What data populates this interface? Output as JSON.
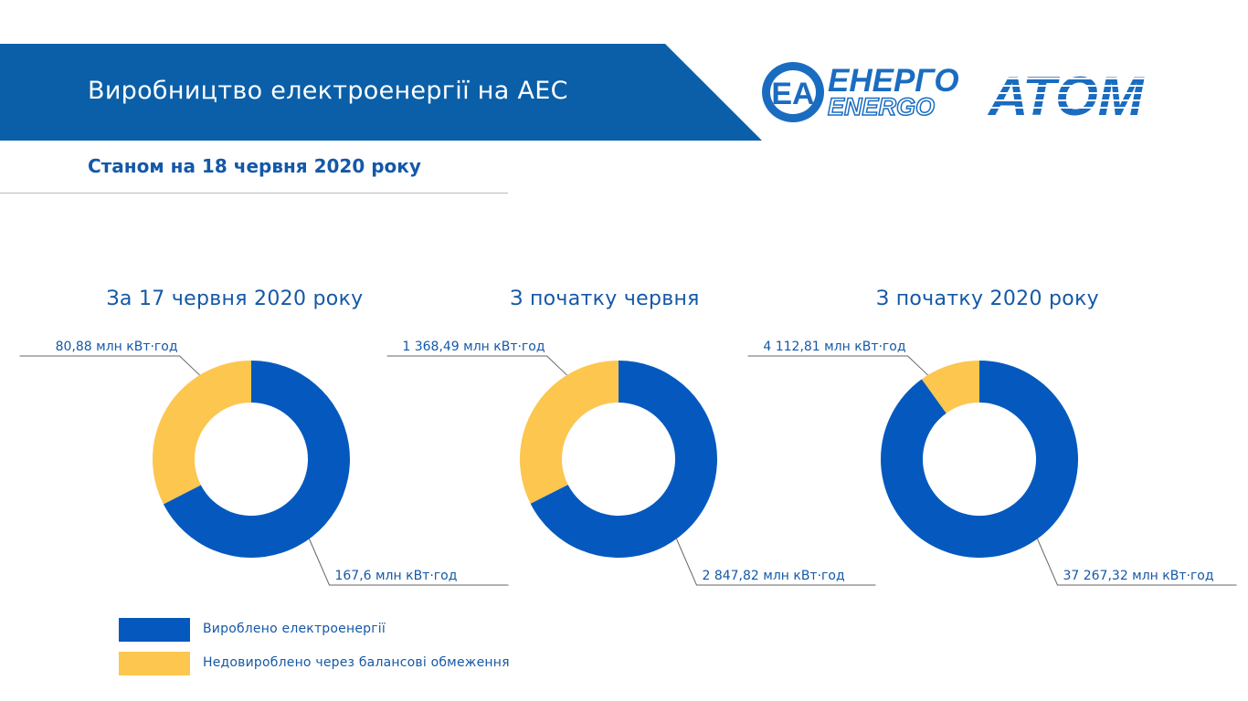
{
  "header": {
    "title": "Виробництво електроенергії на АЕС",
    "subtitle": "Станом на 18 червня 2020 року",
    "logo": {
      "line1": "ЕНЕРГО",
      "line2": "ENERGO",
      "line3": "АТОМ",
      "mark": "ЕА"
    }
  },
  "colors": {
    "produced": "#0559be",
    "underproduced": "#fcc64f",
    "banner": "#0a5fa8",
    "title": "#1458a8"
  },
  "legend": [
    {
      "label": "Вироблено електроенергії",
      "color": "#0559be"
    },
    {
      "label": "Недовироблено через балансові обмеження",
      "color": "#fcc64f"
    }
  ],
  "chart_data": [
    {
      "type": "pie",
      "title": "За 17 червня 2020 року",
      "series": [
        {
          "name": "Вироблено електроенергії",
          "value": 167.6,
          "label": "167,6 млн кВт·год"
        },
        {
          "name": "Недовироблено через балансові обмеження",
          "value": 80.88,
          "label": "80,88 млн кВт·год"
        }
      ]
    },
    {
      "type": "pie",
      "title": "З початку червня",
      "series": [
        {
          "name": "Вироблено електроенергії",
          "value": 2847.82,
          "label": "2 847,82 млн кВт·год"
        },
        {
          "name": "Недовироблено через балансові обмеження",
          "value": 1368.49,
          "label": "1 368,49 млн кВт·год"
        }
      ]
    },
    {
      "type": "pie",
      "title": "З початку 2020 року",
      "series": [
        {
          "name": "Вироблено електроенергії",
          "value": 37267.32,
          "label": "37 267,32 млн кВт·год"
        },
        {
          "name": "Недовироблено через балансові обмеження",
          "value": 4112.81,
          "label": "4 112,81 млн кВт·год"
        }
      ]
    }
  ]
}
